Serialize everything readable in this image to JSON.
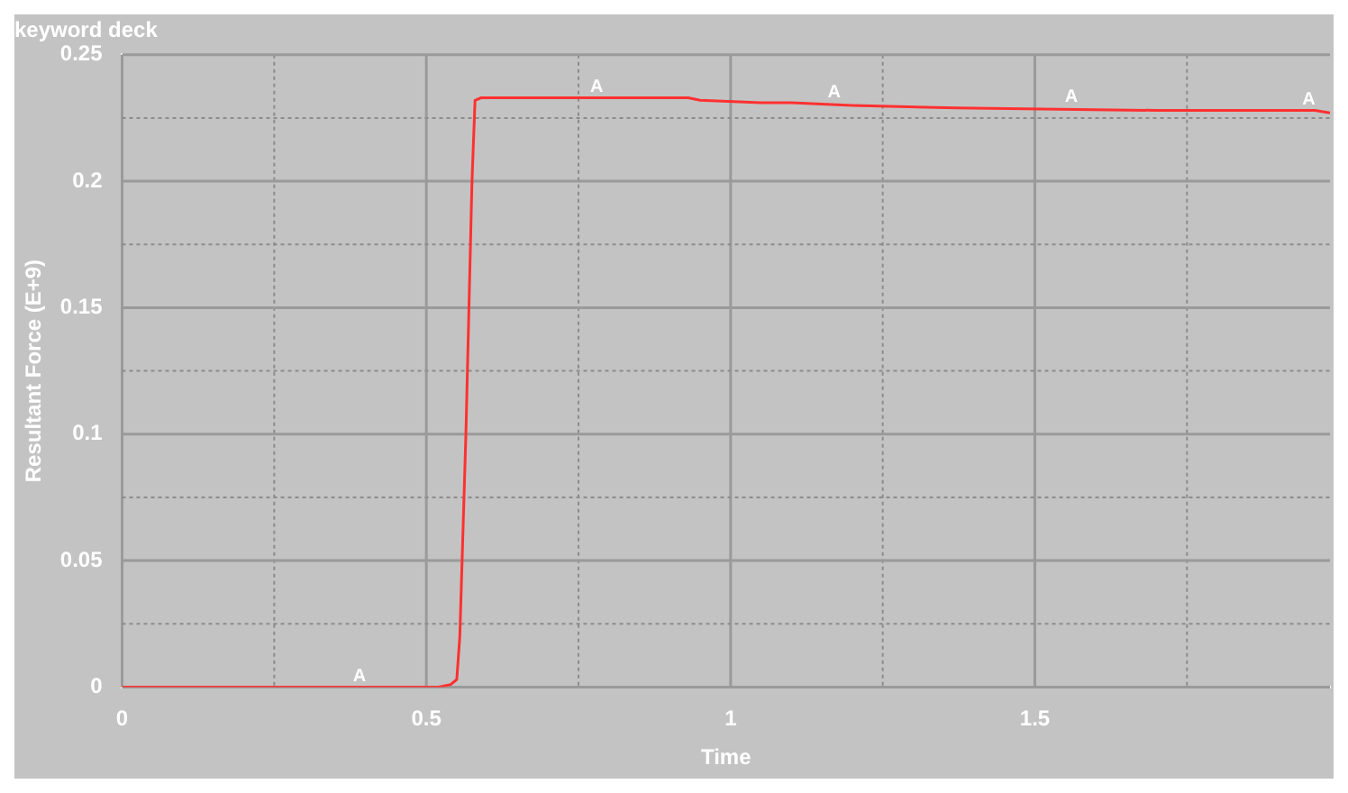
{
  "chart_data": {
    "type": "line",
    "title": "keyword deck",
    "xlabel": "Time",
    "ylabel": "Resultant Force (E+9)",
    "xlim": [
      0,
      1.985
    ],
    "ylim": [
      0,
      0.25
    ],
    "xticks": [
      0,
      {
        "value": 0.25,
        "label": null
      },
      0.5,
      {
        "value": 0.75,
        "label": null
      },
      1,
      {
        "value": 1.25,
        "label": null
      },
      1.5,
      {
        "value": 1.75,
        "label": null
      }
    ],
    "yticks": [
      0,
      {
        "value": 0.025,
        "label": null
      },
      0.05,
      {
        "value": 0.075,
        "label": null
      },
      0.1,
      {
        "value": 0.125,
        "label": null
      },
      0.15,
      {
        "value": 0.175,
        "label": null
      },
      0.2,
      {
        "value": 0.225,
        "label": null
      },
      0.25
    ],
    "grid": true,
    "marker": "none",
    "line_style": "solid",
    "series": [
      {
        "color": "#ff3030",
        "x": [
          0,
          0.5,
          0.52,
          0.54,
          0.55,
          0.555,
          0.565,
          0.575,
          0.58,
          0.59,
          0.8,
          0.93,
          0.95,
          1.05,
          1.1,
          1.2,
          1.37,
          1.7,
          1.9,
          1.96,
          1.985
        ],
        "values": [
          0,
          0,
          0,
          0.001,
          0.003,
          0.02,
          0.1,
          0.2,
          0.232,
          0.233,
          0.233,
          0.233,
          0.232,
          0.231,
          0.231,
          0.23,
          0.229,
          0.228,
          0.228,
          0.228,
          0.227
        ]
      }
    ],
    "annotations": [
      {
        "text": "A",
        "x": 0.39,
        "y": 0
      },
      {
        "text": "A",
        "x": 0.78,
        "y": 0.233
      },
      {
        "text": "A",
        "x": 1.17,
        "y": 0.231
      },
      {
        "text": "A",
        "x": 1.56,
        "y": 0.229
      },
      {
        "text": "A",
        "x": 1.95,
        "y": 0.228
      }
    ]
  }
}
